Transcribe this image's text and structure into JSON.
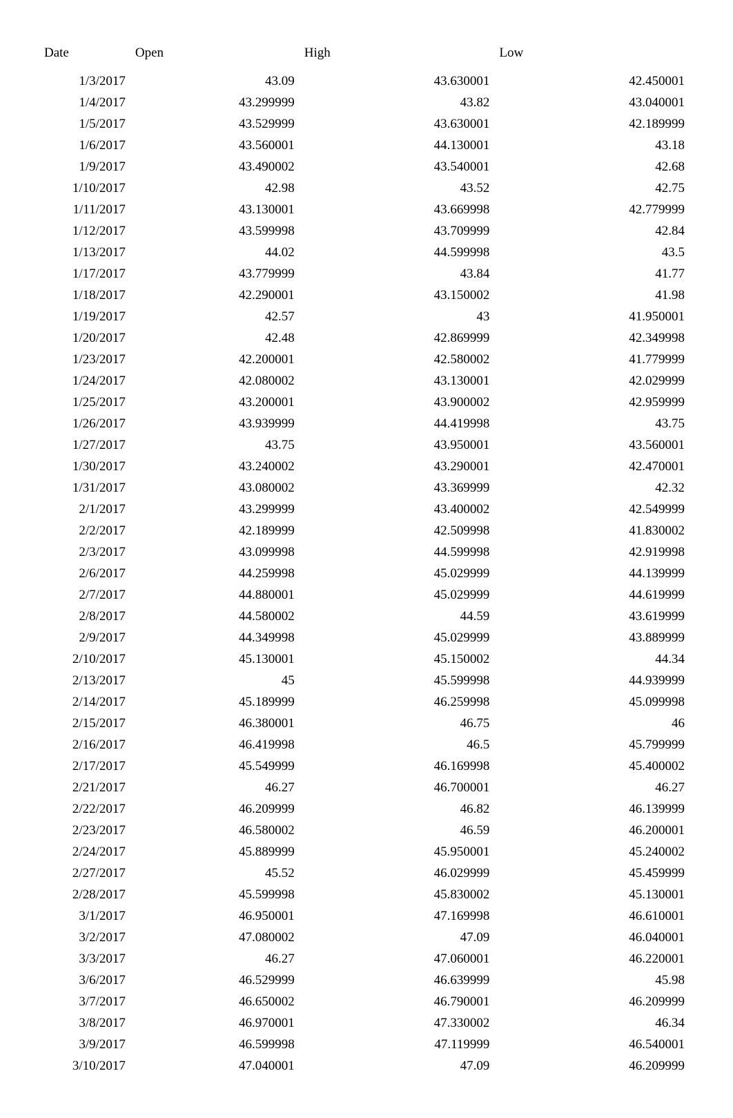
{
  "table": {
    "background_color": "#ffffff",
    "text_color": "#000000",
    "font_family": "Times New Roman",
    "font_size_pt": 14,
    "columns": [
      {
        "key": "date",
        "label": "Date",
        "align": "right",
        "header_align": "left"
      },
      {
        "key": "open",
        "label": "Open",
        "align": "right",
        "header_align": "left"
      },
      {
        "key": "high",
        "label": "High",
        "align": "right",
        "header_align": "left"
      },
      {
        "key": "low",
        "label": "Low",
        "align": "right",
        "header_align": "left"
      }
    ],
    "rows": [
      [
        "1/3/2017",
        "43.09",
        "43.630001",
        "42.450001"
      ],
      [
        "1/4/2017",
        "43.299999",
        "43.82",
        "43.040001"
      ],
      [
        "1/5/2017",
        "43.529999",
        "43.630001",
        "42.189999"
      ],
      [
        "1/6/2017",
        "43.560001",
        "44.130001",
        "43.18"
      ],
      [
        "1/9/2017",
        "43.490002",
        "43.540001",
        "42.68"
      ],
      [
        "1/10/2017",
        "42.98",
        "43.52",
        "42.75"
      ],
      [
        "1/11/2017",
        "43.130001",
        "43.669998",
        "42.779999"
      ],
      [
        "1/12/2017",
        "43.599998",
        "43.709999",
        "42.84"
      ],
      [
        "1/13/2017",
        "44.02",
        "44.599998",
        "43.5"
      ],
      [
        "1/17/2017",
        "43.779999",
        "43.84",
        "41.77"
      ],
      [
        "1/18/2017",
        "42.290001",
        "43.150002",
        "41.98"
      ],
      [
        "1/19/2017",
        "42.57",
        "43",
        "41.950001"
      ],
      [
        "1/20/2017",
        "42.48",
        "42.869999",
        "42.349998"
      ],
      [
        "1/23/2017",
        "42.200001",
        "42.580002",
        "41.779999"
      ],
      [
        "1/24/2017",
        "42.080002",
        "43.130001",
        "42.029999"
      ],
      [
        "1/25/2017",
        "43.200001",
        "43.900002",
        "42.959999"
      ],
      [
        "1/26/2017",
        "43.939999",
        "44.419998",
        "43.75"
      ],
      [
        "1/27/2017",
        "43.75",
        "43.950001",
        "43.560001"
      ],
      [
        "1/30/2017",
        "43.240002",
        "43.290001",
        "42.470001"
      ],
      [
        "1/31/2017",
        "43.080002",
        "43.369999",
        "42.32"
      ],
      [
        "2/1/2017",
        "43.299999",
        "43.400002",
        "42.549999"
      ],
      [
        "2/2/2017",
        "42.189999",
        "42.509998",
        "41.830002"
      ],
      [
        "2/3/2017",
        "43.099998",
        "44.599998",
        "42.919998"
      ],
      [
        "2/6/2017",
        "44.259998",
        "45.029999",
        "44.139999"
      ],
      [
        "2/7/2017",
        "44.880001",
        "45.029999",
        "44.619999"
      ],
      [
        "2/8/2017",
        "44.580002",
        "44.59",
        "43.619999"
      ],
      [
        "2/9/2017",
        "44.349998",
        "45.029999",
        "43.889999"
      ],
      [
        "2/10/2017",
        "45.130001",
        "45.150002",
        "44.34"
      ],
      [
        "2/13/2017",
        "45",
        "45.599998",
        "44.939999"
      ],
      [
        "2/14/2017",
        "45.189999",
        "46.259998",
        "45.099998"
      ],
      [
        "2/15/2017",
        "46.380001",
        "46.75",
        "46"
      ],
      [
        "2/16/2017",
        "46.419998",
        "46.5",
        "45.799999"
      ],
      [
        "2/17/2017",
        "45.549999",
        "46.169998",
        "45.400002"
      ],
      [
        "2/21/2017",
        "46.27",
        "46.700001",
        "46.27"
      ],
      [
        "2/22/2017",
        "46.209999",
        "46.82",
        "46.139999"
      ],
      [
        "2/23/2017",
        "46.580002",
        "46.59",
        "46.200001"
      ],
      [
        "2/24/2017",
        "45.889999",
        "45.950001",
        "45.240002"
      ],
      [
        "2/27/2017",
        "45.52",
        "46.029999",
        "45.459999"
      ],
      [
        "2/28/2017",
        "45.599998",
        "45.830002",
        "45.130001"
      ],
      [
        "3/1/2017",
        "46.950001",
        "47.169998",
        "46.610001"
      ],
      [
        "3/2/2017",
        "47.080002",
        "47.09",
        "46.040001"
      ],
      [
        "3/3/2017",
        "46.27",
        "47.060001",
        "46.220001"
      ],
      [
        "3/6/2017",
        "46.529999",
        "46.639999",
        "45.98"
      ],
      [
        "3/7/2017",
        "46.650002",
        "46.790001",
        "46.209999"
      ],
      [
        "3/8/2017",
        "46.970001",
        "47.330002",
        "46.34"
      ],
      [
        "3/9/2017",
        "46.599998",
        "47.119999",
        "46.540001"
      ],
      [
        "3/10/2017",
        "47.040001",
        "47.09",
        "46.209999"
      ]
    ]
  }
}
